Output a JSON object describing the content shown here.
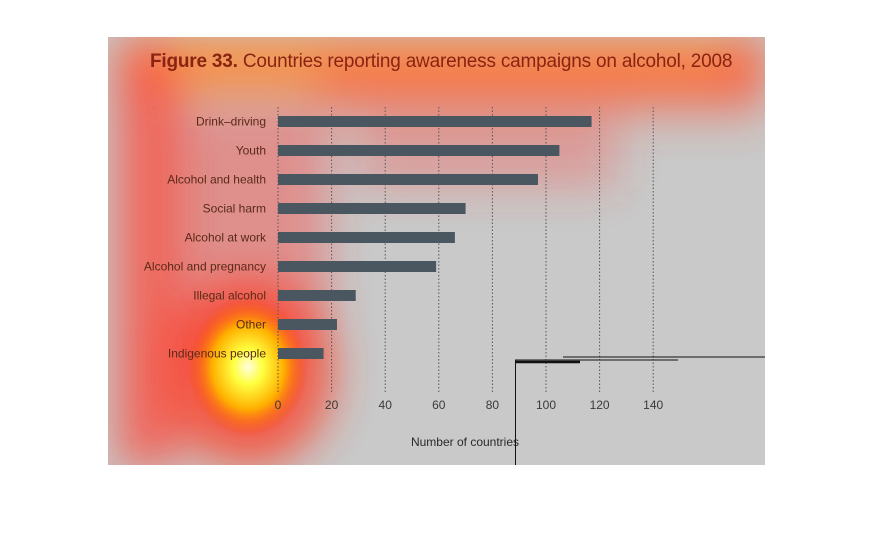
{
  "figure": {
    "title_prefix": "Figure 33.",
    "title_text": " Countries reporting awareness campaigns on alcohol, 2008"
  },
  "colors": {
    "bar": "#4a5660",
    "title": "#8a2410",
    "background": "#c9c9c9",
    "grid": "#555555"
  },
  "chart_data": {
    "type": "bar",
    "orientation": "horizontal",
    "title": "Figure 33. Countries reporting awareness campaigns on alcohol, 2008",
    "categories": [
      "Drink–driving",
      "Youth",
      "Alcohol and health",
      "Social harm",
      "Alcohol at work",
      "Alcohol and pregnancy",
      "Illegal alcohol",
      "Other",
      "Indigenous people"
    ],
    "values": [
      117,
      105,
      97,
      70,
      66,
      59,
      29,
      22,
      17
    ],
    "xlabel": "Number of countries",
    "ylabel": "",
    "xlim": [
      0,
      140
    ],
    "xticks": [
      0,
      20,
      40,
      60,
      80,
      100,
      120,
      140
    ],
    "grid": "vertical dotted"
  }
}
